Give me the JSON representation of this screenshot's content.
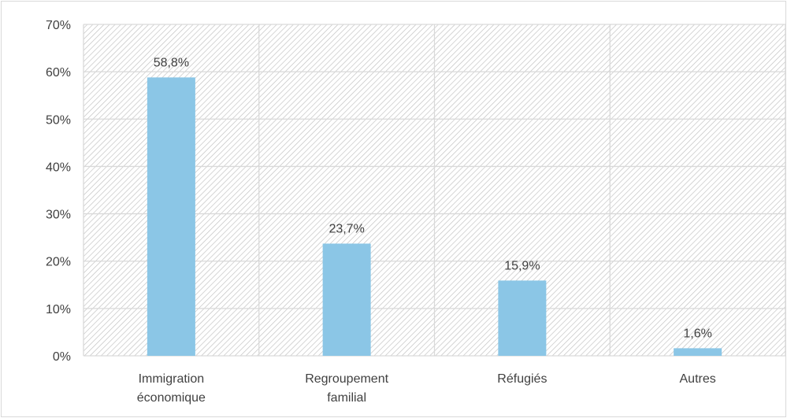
{
  "chart_data": {
    "type": "bar",
    "categories": [
      [
        "Immigration",
        "économique"
      ],
      [
        "Regroupement",
        "familial"
      ],
      [
        "Réfugiés"
      ],
      [
        "Autres"
      ]
    ],
    "values": [
      58.8,
      23.7,
      15.9,
      1.6
    ],
    "data_labels": [
      "58,8%",
      "23,7%",
      "15,9%",
      "1,6%"
    ],
    "y_ticks": [
      0,
      10,
      20,
      30,
      40,
      50,
      60,
      70
    ],
    "y_tick_labels": [
      "0%",
      "10%",
      "20%",
      "30%",
      "40%",
      "50%",
      "60%",
      "70%"
    ],
    "ylim": [
      0,
      70
    ],
    "grid": true,
    "plot_background": "hatched",
    "title": "",
    "xlabel": "",
    "ylabel": ""
  },
  "colors": {
    "bar": "#8bc6e6",
    "grid": "#d9d9d9",
    "hatch": "#bfbfbf",
    "border": "#d9d9d9",
    "text": "#404040"
  }
}
